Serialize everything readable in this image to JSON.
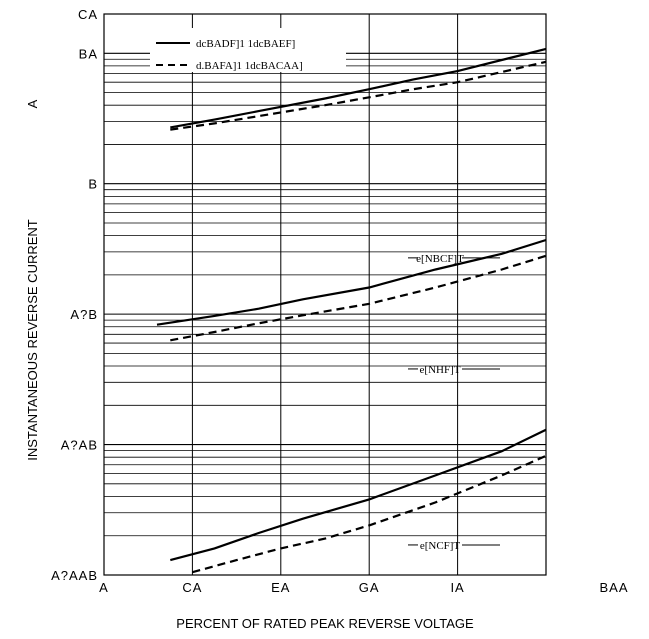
{
  "chart_data": {
    "type": "line",
    "title": "",
    "xlabel": "PERCENT OF RATED PEAK REVERSE VOLTAGE",
    "ylabel": "INSTANTANEOUS REVERSE CURRENT",
    "ylabel_unit": "A",
    "x_ticks": [
      "A",
      "CA",
      "EA",
      "GA",
      "IA",
      "BAA"
    ],
    "y_ticks": [
      "CA",
      "BA",
      "B",
      "A?B",
      "A?AB",
      "A?AAB"
    ],
    "x_range": [
      0,
      100
    ],
    "y_scale": "log",
    "y_range": [
      0.001,
      20
    ],
    "grid": true,
    "legend_position": "top-left",
    "series": [
      {
        "name": "dcBADF]1 1dcBAEF]",
        "style": "solid",
        "group": "e[NBCF]T",
        "x": [
          15,
          25,
          35,
          50,
          60,
          70,
          80,
          100
        ],
        "y": [
          2.7,
          3.1,
          3.6,
          4.5,
          5.3,
          6.3,
          7.3,
          10.8
        ]
      },
      {
        "name": "d.BAFA]1 1dcBACAA]",
        "style": "dashed",
        "group": "e[NBCF]T",
        "x": [
          15,
          25,
          35,
          50,
          60,
          70,
          80,
          100
        ],
        "y": [
          2.6,
          2.9,
          3.3,
          4.0,
          4.6,
          5.3,
          6.0,
          8.6
        ]
      },
      {
        "name": "",
        "style": "solid",
        "group": "e[NHF]T",
        "x": [
          12,
          25,
          35,
          45,
          60,
          75,
          90,
          100
        ],
        "y": [
          0.083,
          0.097,
          0.11,
          0.13,
          0.16,
          0.22,
          0.29,
          0.37
        ]
      },
      {
        "name": "",
        "style": "dashed",
        "group": "e[NHF]T",
        "x": [
          15,
          25,
          35,
          45,
          60,
          75,
          90,
          100
        ],
        "y": [
          0.063,
          0.073,
          0.085,
          0.098,
          0.12,
          0.16,
          0.22,
          0.28
        ]
      },
      {
        "name": "",
        "style": "solid",
        "group": "e[NCF]T",
        "x": [
          15,
          25,
          35,
          45,
          60,
          75,
          90,
          100
        ],
        "y": [
          0.0013,
          0.0016,
          0.0021,
          0.0027,
          0.0038,
          0.0058,
          0.0089,
          0.013
        ]
      },
      {
        "name": "",
        "style": "dashed",
        "group": "e[NCF]T",
        "x": [
          20,
          30,
          40,
          50,
          60,
          75,
          90,
          100
        ],
        "y": [
          0.00105,
          0.0013,
          0.0016,
          0.0019,
          0.0024,
          0.0036,
          0.0058,
          0.0082
        ]
      }
    ],
    "annotations": [
      "e[NBCF]T",
      "e[NHF]T",
      "e[NCF]T"
    ]
  }
}
